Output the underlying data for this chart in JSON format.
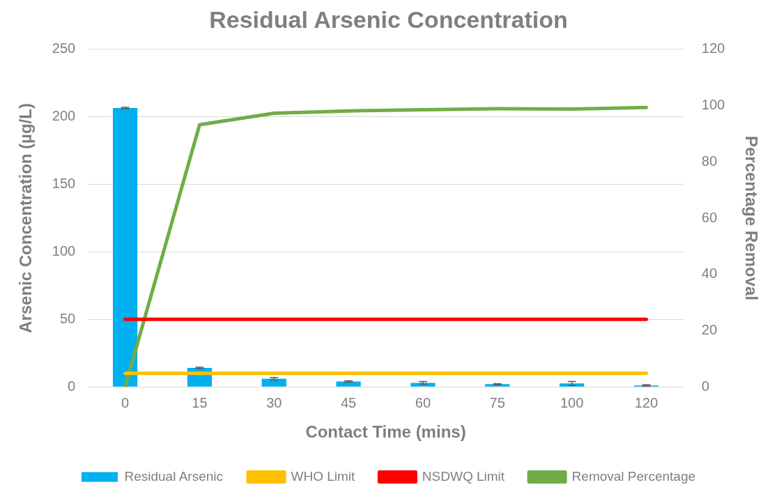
{
  "chart_data": {
    "type": "bar",
    "title": "Residual Arsenic Concentration",
    "xlabel": "Contact Time (mins)",
    "ylabel": "Arsenic Concentration (µg/L)",
    "y2label": "Percentage Removal",
    "categories": [
      "0",
      "15",
      "30",
      "45",
      "60",
      "75",
      "100",
      "120"
    ],
    "series": [
      {
        "name": "Residual Arsenic",
        "color": "#00b0f0",
        "values": [
          206.5,
          14,
          6,
          4,
          3,
          2,
          2.5,
          1
        ],
        "errors": [
          0.5,
          0.5,
          1,
          0.5,
          1,
          0.3,
          1.5,
          0.5
        ]
      },
      {
        "name": "WHO Limit",
        "type": "line",
        "color": "#ffc000",
        "values": [
          10,
          10,
          10,
          10,
          10,
          10,
          10,
          10
        ]
      },
      {
        "name": "NSDWQ Limit",
        "type": "line",
        "color": "#ff0000",
        "values": [
          50,
          50,
          50,
          50,
          50,
          50,
          50,
          50
        ]
      },
      {
        "name": "Removal Percentage",
        "type": "line",
        "axis": "y2",
        "color": "#70ad47",
        "values": [
          0,
          93.2,
          97.3,
          98.1,
          98.5,
          98.9,
          98.8,
          99.3
        ]
      }
    ],
    "ylim": [
      0,
      250
    ],
    "yticks": [
      0,
      50,
      100,
      150,
      200,
      250
    ],
    "y2lim": [
      0,
      120
    ],
    "y2ticks": [
      0,
      20,
      40,
      60,
      80,
      100,
      120
    ],
    "grid": "y",
    "legend": "bottom",
    "marker": "none"
  }
}
